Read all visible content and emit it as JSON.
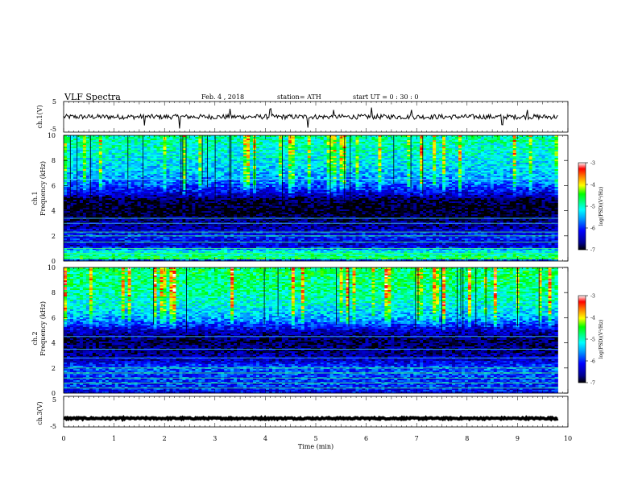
{
  "header": {
    "title": "VLF  Spectra",
    "date": "Feb. 4 ,  2018",
    "station": "station= ATH",
    "start": "start  UT  =   0 : 30 : 0"
  },
  "chart_data": [
    {
      "type": "line",
      "name": "ch1-waveform",
      "ylabel": "ch.1(V)",
      "ylim": [
        -5,
        5
      ],
      "yticks": [
        "5",
        "-5"
      ],
      "xlim": [
        0,
        10
      ],
      "data_range_min": [
        0,
        9.8
      ],
      "baseline_v": 0,
      "noise_amplitude_v": 0.8,
      "spike_times_min": [
        1.6,
        2.3,
        3.3,
        4.1,
        4.85,
        5.35,
        6.1,
        6.9,
        8.7,
        9.2
      ]
    },
    {
      "type": "heatmap",
      "name": "ch1-spectrogram",
      "ylabel_channel": "ch.1",
      "ylabel": "Frequency  (kHz)",
      "ylim": [
        0,
        10
      ],
      "yticks": [
        "0",
        "2",
        "4",
        "6",
        "8",
        "10"
      ],
      "xlim": [
        0,
        10
      ],
      "data_range_min": [
        0,
        9.8
      ],
      "colorbar": {
        "label": "log(PSD)(V²/Hz)",
        "range": [
          -7,
          -3
        ],
        "ticks": [
          "-3",
          "-4",
          "-5",
          "-6",
          "-7"
        ]
      },
      "level_profile_log_psd": [
        {
          "f_khz": 0.0,
          "level": -6.6
        },
        {
          "f_khz": 0.2,
          "level": -4.6
        },
        {
          "f_khz": 0.8,
          "level": -5.2
        },
        {
          "f_khz": 1.2,
          "level": -6.4
        },
        {
          "f_khz": 2.0,
          "level": -6.0
        },
        {
          "f_khz": 2.6,
          "level": -6.5
        },
        {
          "f_khz": 3.2,
          "level": -6.7
        },
        {
          "f_khz": 3.8,
          "level": -7.0
        },
        {
          "f_khz": 4.8,
          "level": -6.9
        },
        {
          "f_khz": 5.4,
          "level": -6.3
        },
        {
          "f_khz": 6.2,
          "level": -5.7
        },
        {
          "f_khz": 7.0,
          "level": -5.4
        },
        {
          "f_khz": 8.5,
          "level": -5.1
        },
        {
          "f_khz": 10.0,
          "level": -4.9
        }
      ],
      "lines_khz": [
        0.3,
        0.6,
        1.0,
        1.5,
        2.0,
        2.3,
        3.0,
        3.4,
        6.5
      ]
    },
    {
      "type": "heatmap",
      "name": "ch2-spectrogram",
      "ylabel_channel": "ch.2",
      "ylabel": "Frequency  (kHz)",
      "ylim": [
        0,
        10
      ],
      "yticks": [
        "0",
        "2",
        "4",
        "6",
        "8",
        "10"
      ],
      "xlim": [
        0,
        10
      ],
      "data_range_min": [
        0,
        9.8
      ],
      "colorbar": {
        "label": "log(PSD)(V²/Hz)",
        "range": [
          -7,
          -3
        ],
        "ticks": [
          "-3",
          "-4",
          "-5",
          "-6",
          "-7"
        ]
      },
      "level_profile_log_psd": [
        {
          "f_khz": 0.0,
          "level": -6.2
        },
        {
          "f_khz": 0.5,
          "level": -6.0
        },
        {
          "f_khz": 1.5,
          "level": -5.9
        },
        {
          "f_khz": 2.0,
          "level": -5.8
        },
        {
          "f_khz": 2.6,
          "level": -6.4
        },
        {
          "f_khz": 3.4,
          "level": -6.7
        },
        {
          "f_khz": 4.2,
          "level": -6.8
        },
        {
          "f_khz": 5.0,
          "level": -6.4
        },
        {
          "f_khz": 5.8,
          "level": -5.6
        },
        {
          "f_khz": 7.0,
          "level": -5.1
        },
        {
          "f_khz": 8.5,
          "level": -4.8
        },
        {
          "f_khz": 10.0,
          "level": -4.7
        }
      ],
      "lines_khz": [
        0.4,
        0.8,
        1.2,
        1.6,
        2.0,
        2.8,
        3.5,
        4.5
      ]
    },
    {
      "type": "line",
      "name": "ch3-waveform",
      "ylabel": "ch.3(V)",
      "ylim": [
        -5,
        5
      ],
      "yticks": [
        "5",
        "-5"
      ],
      "xlim": [
        0,
        10
      ],
      "data_range_min": [
        0,
        9.8
      ],
      "baseline_v": -2.2,
      "noise_amplitude_v": 0.25,
      "spike_times_min": []
    }
  ],
  "x_axis": {
    "label": "Time  (min)",
    "ticks": [
      "0",
      "1",
      "2",
      "3",
      "4",
      "5",
      "6",
      "7",
      "8",
      "9",
      "10"
    ]
  },
  "colors": {
    "colormap": [
      "#000000",
      "#00008c",
      "#0000ff",
      "#00a0ff",
      "#00ffff",
      "#00ff80",
      "#00ff00",
      "#ffff00",
      "#ff8000",
      "#ff0000",
      "#ffffff"
    ]
  }
}
